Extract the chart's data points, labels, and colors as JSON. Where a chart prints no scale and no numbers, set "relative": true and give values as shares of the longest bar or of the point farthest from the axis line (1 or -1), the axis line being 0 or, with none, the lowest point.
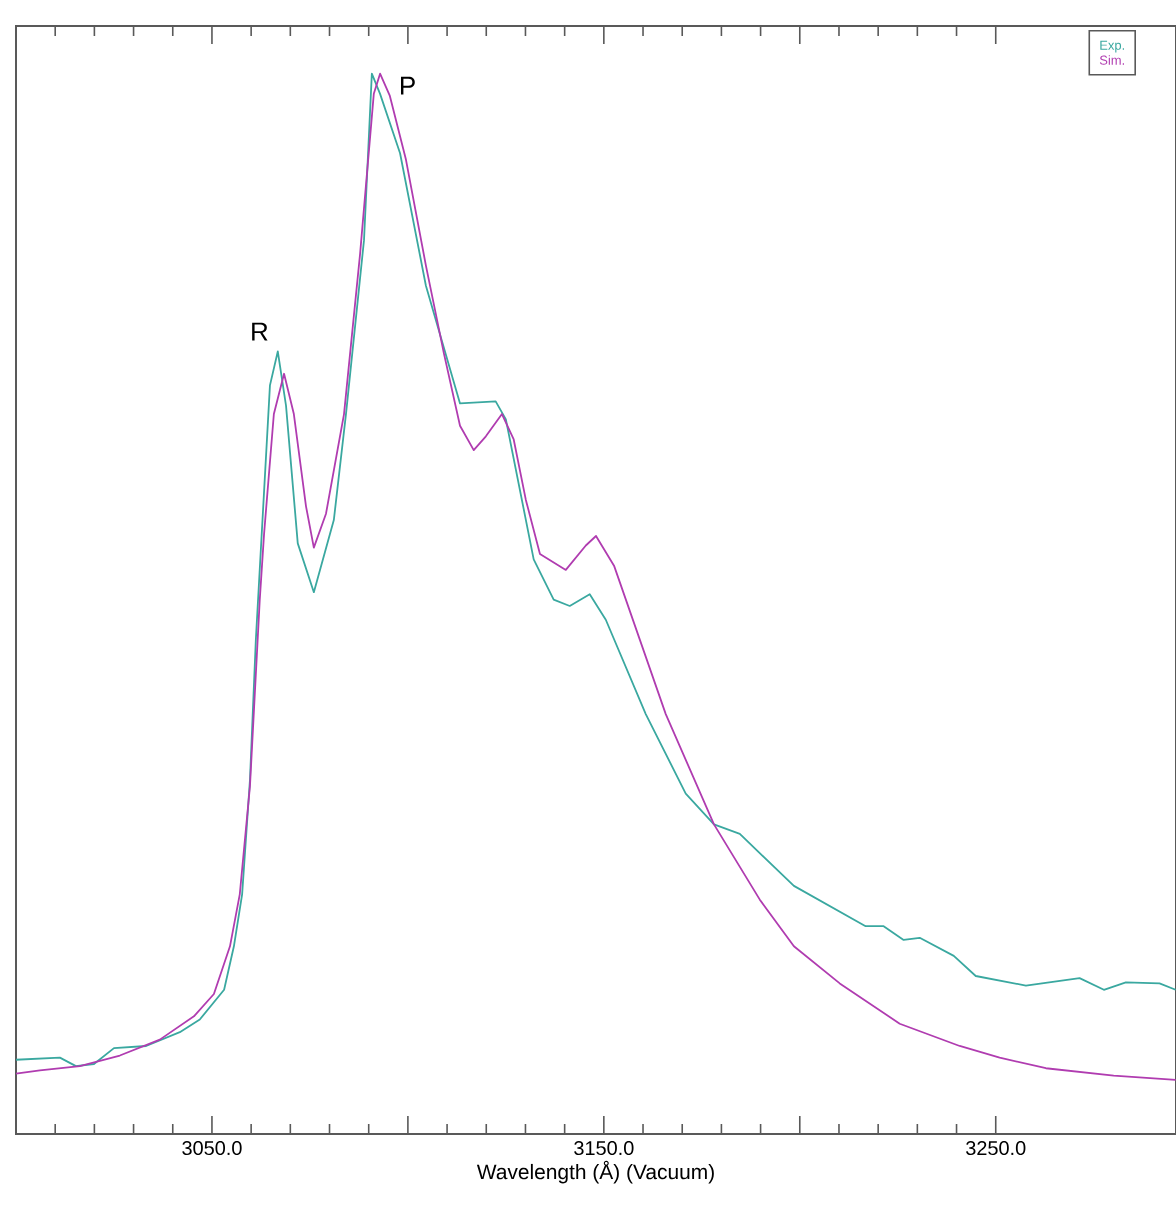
{
  "chart_data": {
    "type": "line",
    "xlabel": "Wavelength (Å) (Vacuum)",
    "relative": true,
    "legend": "top right",
    "line_style": "solid",
    "marker": "none",
    "xlim": [
      3000,
      3296
    ],
    "xticks": [
      {
        "value": 3000,
        "label": null
      },
      {
        "value": 3050,
        "label": "3050.0"
      },
      {
        "value": 3100,
        "label": null
      },
      {
        "value": 3150,
        "label": "3150.0"
      },
      {
        "value": 3200,
        "label": null
      },
      {
        "value": 3250,
        "label": "3250.0"
      }
    ],
    "annotations": [
      {
        "text": "R",
        "x": 3066.8,
        "y": 0.738
      },
      {
        "text": "P",
        "x": 3090.8,
        "y": 1.0
      }
    ],
    "series": [
      {
        "name": "Exp.",
        "color": "#3aa8a0",
        "x": [
          3000.0,
          3011.2,
          3015.3,
          3019.9,
          3025.0,
          3033.2,
          3041.8,
          3046.9,
          3053.1,
          3055.6,
          3057.7,
          3059.7,
          3061.2,
          3064.8,
          3066.8,
          3068.9,
          3071.9,
          3076.0,
          3081.1,
          3084.2,
          3088.8,
          3090.8,
          3092.9,
          3098.0,
          3104.6,
          3113.3,
          3122.4,
          3125.0,
          3132.1,
          3137.2,
          3141.3,
          3146.4,
          3150.5,
          3160.7,
          3170.9,
          3178.1,
          3184.7,
          3198.5,
          3216.8,
          3221.4,
          3226.5,
          3230.6,
          3239.3,
          3244.9,
          3257.7,
          3271.4,
          3277.6,
          3283.2,
          3291.8,
          3295.9
        ],
        "values": [
          0.07,
          0.072,
          0.064,
          0.066,
          0.081,
          0.083,
          0.096,
          0.108,
          0.136,
          0.177,
          0.226,
          0.334,
          0.466,
          0.706,
          0.738,
          0.687,
          0.557,
          0.511,
          0.579,
          0.679,
          0.843,
          1.0,
          0.981,
          0.925,
          0.8,
          0.689,
          0.691,
          0.674,
          0.542,
          0.504,
          0.498,
          0.509,
          0.485,
          0.396,
          0.321,
          0.292,
          0.283,
          0.234,
          0.196,
          0.196,
          0.183,
          0.185,
          0.168,
          0.149,
          0.14,
          0.147,
          0.136,
          0.143,
          0.142,
          0.136
        ]
      },
      {
        "name": "Sim.",
        "color": "#b03cb0",
        "x": [
          3000.0,
          3006.1,
          3016.3,
          3026.5,
          3036.7,
          3045.4,
          3050.5,
          3054.6,
          3057.1,
          3059.7,
          3062.2,
          3063.3,
          3065.8,
          3068.4,
          3070.9,
          3074.0,
          3076.0,
          3079.1,
          3083.7,
          3087.8,
          3091.3,
          3092.9,
          3095.4,
          3099.5,
          3104.6,
          3109.2,
          3113.3,
          3116.8,
          3119.9,
          3124.0,
          3127.0,
          3130.1,
          3133.7,
          3140.3,
          3145.4,
          3148.0,
          3152.6,
          3159.2,
          3165.8,
          3178.1,
          3189.8,
          3198.5,
          3210.2,
          3225.5,
          3240.8,
          3251.0,
          3262.8,
          3280.1,
          3295.9
        ],
        "values": [
          0.057,
          0.06,
          0.064,
          0.074,
          0.089,
          0.111,
          0.132,
          0.177,
          0.226,
          0.328,
          0.504,
          0.566,
          0.679,
          0.717,
          0.679,
          0.592,
          0.553,
          0.585,
          0.679,
          0.83,
          0.981,
          1.0,
          0.979,
          0.919,
          0.819,
          0.736,
          0.668,
          0.645,
          0.658,
          0.679,
          0.655,
          0.598,
          0.547,
          0.532,
          0.555,
          0.564,
          0.536,
          0.466,
          0.396,
          0.292,
          0.221,
          0.177,
          0.142,
          0.104,
          0.083,
          0.072,
          0.062,
          0.055,
          0.051
        ]
      }
    ]
  }
}
